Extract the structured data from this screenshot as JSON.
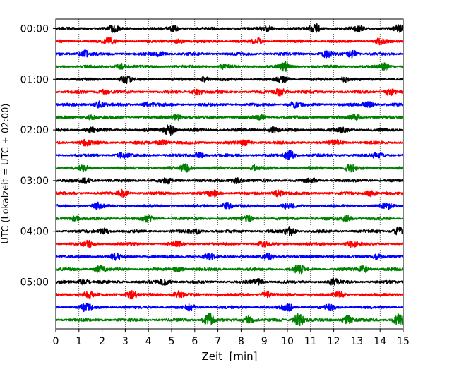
{
  "chart_data": {
    "type": "line",
    "title": "",
    "xlabel": "Zeit  [min]",
    "ylabel": "UTC (Lokalzeit = UTC + 02:00)",
    "xlim": [
      0,
      15
    ],
    "x_ticks": [
      "0",
      "1",
      "2",
      "3",
      "4",
      "5",
      "6",
      "7",
      "8",
      "9",
      "10",
      "11",
      "12",
      "13",
      "14",
      "15"
    ],
    "y_ticks": [
      "00:00",
      "01:00",
      "02:00",
      "03:00",
      "04:00",
      "05:00"
    ],
    "grid": "vertical dotted lines at each minute",
    "legend": "none",
    "trace_minutes": 15,
    "trace_colors": [
      "#000000",
      "#ff0000",
      "#0000ff",
      "#008000"
    ],
    "series": [
      {
        "start": "00:00",
        "color": "#000000",
        "bursts": [
          {
            "x": 2.5,
            "a": 0.35
          },
          {
            "x": 5.1,
            "a": 0.3
          },
          {
            "x": 9.1,
            "a": 0.35
          },
          {
            "x": 11.2,
            "a": 0.6
          },
          {
            "x": 13.1,
            "a": 0.35
          },
          {
            "x": 14.8,
            "a": 0.4
          }
        ]
      },
      {
        "start": "00:15",
        "color": "#ff0000",
        "bursts": [
          {
            "x": 2.3,
            "a": 0.35
          },
          {
            "x": 5.3,
            "a": 0.25
          },
          {
            "x": 8.7,
            "a": 0.4
          },
          {
            "x": 14.0,
            "a": 0.35
          }
        ]
      },
      {
        "start": "00:30",
        "color": "#0000ff",
        "bursts": [
          {
            "x": 1.2,
            "a": 0.5
          },
          {
            "x": 4.5,
            "a": 0.3
          },
          {
            "x": 11.7,
            "a": 0.4
          },
          {
            "x": 12.8,
            "a": 0.45
          }
        ]
      },
      {
        "start": "00:45",
        "color": "#008000",
        "bursts": [
          {
            "x": 2.8,
            "a": 0.35
          },
          {
            "x": 7.3,
            "a": 0.3
          },
          {
            "x": 9.9,
            "a": 0.5
          },
          {
            "x": 14.2,
            "a": 0.4
          }
        ]
      },
      {
        "start": "01:00",
        "color": "#000000",
        "bursts": [
          {
            "x": 3.0,
            "a": 0.45
          },
          {
            "x": 6.4,
            "a": 0.3
          },
          {
            "x": 9.8,
            "a": 0.4
          },
          {
            "x": 12.5,
            "a": 0.35
          }
        ]
      },
      {
        "start": "01:15",
        "color": "#ff0000",
        "bursts": [
          {
            "x": 2.1,
            "a": 0.3
          },
          {
            "x": 6.1,
            "a": 0.35
          },
          {
            "x": 9.7,
            "a": 0.45
          },
          {
            "x": 14.4,
            "a": 0.45
          }
        ]
      },
      {
        "start": "01:30",
        "color": "#0000ff",
        "bursts": [
          {
            "x": 1.9,
            "a": 0.4
          },
          {
            "x": 4.0,
            "a": 0.35
          },
          {
            "x": 10.3,
            "a": 0.35
          },
          {
            "x": 13.5,
            "a": 0.35
          }
        ]
      },
      {
        "start": "01:45",
        "color": "#008000",
        "bursts": [
          {
            "x": 1.5,
            "a": 0.3
          },
          {
            "x": 5.2,
            "a": 0.35
          },
          {
            "x": 8.8,
            "a": 0.3
          },
          {
            "x": 12.9,
            "a": 0.4
          }
        ]
      },
      {
        "start": "02:00",
        "color": "#000000",
        "bursts": [
          {
            "x": 1.5,
            "a": 0.3
          },
          {
            "x": 4.9,
            "a": 0.75
          },
          {
            "x": 9.4,
            "a": 0.35
          },
          {
            "x": 12.4,
            "a": 0.3
          }
        ]
      },
      {
        "start": "02:15",
        "color": "#ff0000",
        "bursts": [
          {
            "x": 1.3,
            "a": 0.4
          },
          {
            "x": 4.6,
            "a": 0.35
          },
          {
            "x": 8.2,
            "a": 0.35
          },
          {
            "x": 12.1,
            "a": 0.35
          }
        ]
      },
      {
        "start": "02:30",
        "color": "#0000ff",
        "bursts": [
          {
            "x": 2.9,
            "a": 0.35
          },
          {
            "x": 6.2,
            "a": 0.35
          },
          {
            "x": 10.1,
            "a": 0.65
          },
          {
            "x": 13.9,
            "a": 0.4
          }
        ]
      },
      {
        "start": "02:45",
        "color": "#008000",
        "bursts": [
          {
            "x": 1.2,
            "a": 0.3
          },
          {
            "x": 5.6,
            "a": 0.5
          },
          {
            "x": 8.6,
            "a": 0.3
          },
          {
            "x": 12.7,
            "a": 0.5
          }
        ]
      },
      {
        "start": "03:00",
        "color": "#000000",
        "bursts": [
          {
            "x": 1.3,
            "a": 0.35
          },
          {
            "x": 4.8,
            "a": 0.3
          },
          {
            "x": 7.8,
            "a": 0.35
          },
          {
            "x": 11.0,
            "a": 0.3
          }
        ]
      },
      {
        "start": "03:15",
        "color": "#ff0000",
        "bursts": [
          {
            "x": 2.9,
            "a": 0.45
          },
          {
            "x": 6.8,
            "a": 0.4
          },
          {
            "x": 9.6,
            "a": 0.4
          },
          {
            "x": 13.6,
            "a": 0.4
          }
        ]
      },
      {
        "start": "03:30",
        "color": "#0000ff",
        "bursts": [
          {
            "x": 1.8,
            "a": 0.35
          },
          {
            "x": 7.4,
            "a": 0.4
          },
          {
            "x": 10.0,
            "a": 0.3
          },
          {
            "x": 14.3,
            "a": 0.35
          }
        ]
      },
      {
        "start": "03:45",
        "color": "#008000",
        "bursts": [
          {
            "x": 0.8,
            "a": 0.35
          },
          {
            "x": 4.0,
            "a": 0.35
          },
          {
            "x": 8.3,
            "a": 0.35
          },
          {
            "x": 12.6,
            "a": 0.4
          }
        ]
      },
      {
        "start": "04:00",
        "color": "#000000",
        "bursts": [
          {
            "x": 2.1,
            "a": 0.4
          },
          {
            "x": 6.0,
            "a": 0.35
          },
          {
            "x": 10.1,
            "a": 0.55
          },
          {
            "x": 14.8,
            "a": 0.55
          }
        ]
      },
      {
        "start": "04:15",
        "color": "#ff0000",
        "bursts": [
          {
            "x": 1.4,
            "a": 0.35
          },
          {
            "x": 5.2,
            "a": 0.35
          },
          {
            "x": 9.0,
            "a": 0.3
          },
          {
            "x": 12.8,
            "a": 0.35
          }
        ]
      },
      {
        "start": "04:30",
        "color": "#0000ff",
        "bursts": [
          {
            "x": 2.6,
            "a": 0.35
          },
          {
            "x": 6.6,
            "a": 0.35
          },
          {
            "x": 9.2,
            "a": 0.35
          },
          {
            "x": 13.9,
            "a": 0.4
          }
        ]
      },
      {
        "start": "04:45",
        "color": "#008000",
        "bursts": [
          {
            "x": 1.9,
            "a": 0.4
          },
          {
            "x": 5.3,
            "a": 0.35
          },
          {
            "x": 10.5,
            "a": 0.55
          },
          {
            "x": 13.3,
            "a": 0.45
          }
        ]
      },
      {
        "start": "05:00",
        "color": "#000000",
        "bursts": [
          {
            "x": 1.2,
            "a": 0.35
          },
          {
            "x": 4.7,
            "a": 0.4
          },
          {
            "x": 8.7,
            "a": 0.35
          },
          {
            "x": 12.0,
            "a": 0.35
          }
        ]
      },
      {
        "start": "05:15",
        "color": "#ff0000",
        "bursts": [
          {
            "x": 1.4,
            "a": 0.4
          },
          {
            "x": 3.3,
            "a": 0.55
          },
          {
            "x": 5.3,
            "a": 0.45
          },
          {
            "x": 9.1,
            "a": 0.35
          },
          {
            "x": 12.3,
            "a": 0.35
          }
        ]
      },
      {
        "start": "05:30",
        "color": "#0000ff",
        "bursts": [
          {
            "x": 1.3,
            "a": 0.5
          },
          {
            "x": 5.8,
            "a": 0.35
          },
          {
            "x": 10.0,
            "a": 0.45
          },
          {
            "x": 11.8,
            "a": 0.35
          }
        ]
      },
      {
        "start": "05:45",
        "color": "#008000",
        "bursts": [
          {
            "x": 6.6,
            "a": 0.9
          },
          {
            "x": 8.3,
            "a": 0.5
          },
          {
            "x": 10.5,
            "a": 0.85
          },
          {
            "x": 12.6,
            "a": 0.55
          },
          {
            "x": 14.8,
            "a": 0.7
          }
        ]
      }
    ]
  }
}
